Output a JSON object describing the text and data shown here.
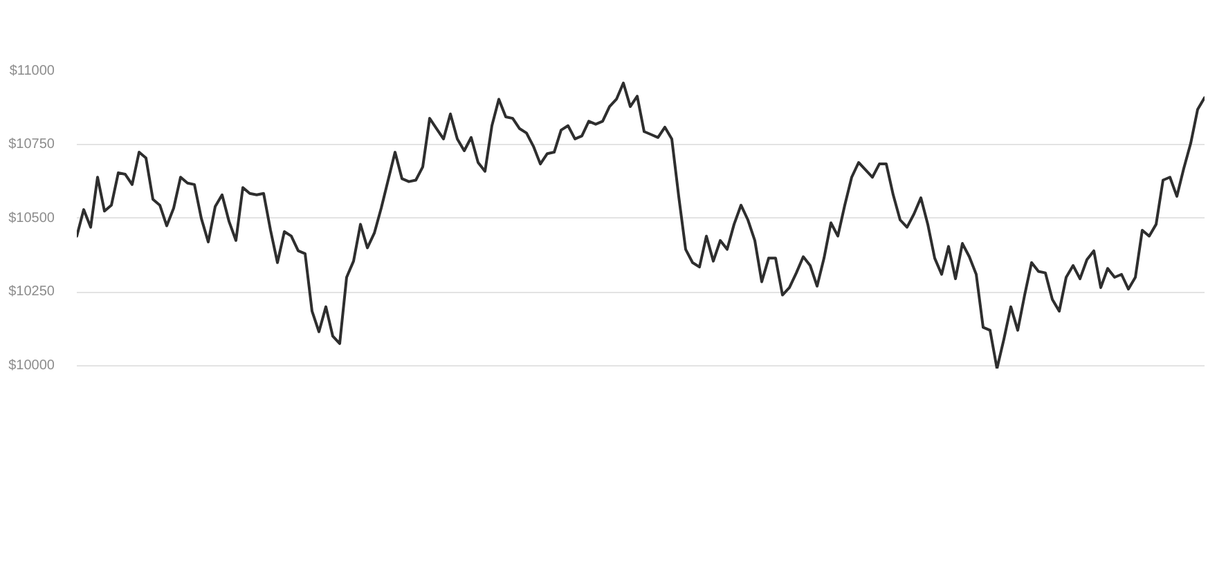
{
  "chart_data": {
    "type": "line",
    "color": "#2e2e2e",
    "categories": [
      null,
      null,
      null,
      null,
      null,
      null,
      null,
      null,
      null,
      null,
      null,
      null,
      null,
      null,
      null,
      null,
      null,
      null,
      null,
      null,
      null,
      null,
      null,
      null,
      null,
      null,
      null,
      null,
      null,
      null,
      null,
      null,
      null,
      null,
      null,
      null,
      null,
      null,
      null,
      null,
      null,
      null,
      null,
      null,
      null,
      null,
      null,
      null,
      null,
      null,
      null,
      null,
      null,
      null,
      null,
      null,
      null,
      null,
      null,
      null,
      null,
      null,
      null,
      null,
      null,
      null,
      null,
      null,
      null,
      null,
      null,
      null,
      null,
      null,
      null,
      null,
      null,
      null,
      null,
      null,
      null,
      null,
      null,
      null,
      null,
      null,
      null,
      null,
      null,
      null,
      null,
      null,
      null,
      null,
      null,
      null,
      null,
      null,
      null,
      null,
      null,
      null,
      null,
      null,
      null,
      null,
      null,
      null,
      null,
      null,
      null,
      null,
      null,
      null,
      null,
      null,
      null,
      null,
      null,
      null,
      null,
      null,
      null,
      null,
      null,
      null,
      null,
      null,
      null,
      null,
      null,
      null,
      null,
      null,
      null,
      null,
      null,
      null,
      null,
      null,
      null,
      null,
      null,
      null,
      null,
      null,
      null,
      null,
      null,
      null,
      null,
      null,
      null,
      null,
      null,
      null,
      null,
      null,
      null,
      null,
      null,
      null,
      null,
      null
    ],
    "values": [
      10440,
      10530,
      10470,
      10640,
      10525,
      10545,
      10655,
      10650,
      10615,
      10725,
      10705,
      10565,
      10545,
      10475,
      10535,
      10640,
      10620,
      10615,
      10500,
      10420,
      10540,
      10580,
      10490,
      10425,
      10605,
      10585,
      10580,
      10585,
      10460,
      10350,
      10455,
      10440,
      10390,
      10380,
      10185,
      10115,
      10200,
      10100,
      10075,
      10300,
      10355,
      10480,
      10400,
      10450,
      10535,
      10630,
      10725,
      10635,
      10625,
      10630,
      10675,
      10840,
      10805,
      10770,
      10855,
      10770,
      10730,
      10775,
      10690,
      10660,
      10815,
      10905,
      10845,
      10840,
      10805,
      10790,
      10745,
      10685,
      10720,
      10725,
      10800,
      10815,
      10770,
      10780,
      10830,
      10820,
      10830,
      10880,
      10905,
      10960,
      10880,
      10915,
      10795,
      10785,
      10775,
      10810,
      10770,
      10575,
      10395,
      10350,
      10335,
      10440,
      10355,
      10425,
      10395,
      10480,
      10545,
      10495,
      10425,
      10285,
      10365,
      10365,
      10240,
      10265,
      10315,
      10370,
      10340,
      10270,
      10365,
      10485,
      10440,
      10545,
      10640,
      10690,
      10665,
      10640,
      10685,
      10685,
      10580,
      10495,
      10470,
      10515,
      10570,
      10480,
      10365,
      10310,
      10405,
      10295,
      10415,
      10370,
      10310,
      10130,
      10120,
      9990,
      10090,
      10200,
      10120,
      10240,
      10350,
      10320,
      10315,
      10225,
      10185,
      10300,
      10340,
      10295,
      10360,
      10390,
      10265,
      10330,
      10300,
      10310,
      10260,
      10300,
      10460,
      10440,
      10480,
      10630,
      10640,
      10575,
      10670,
      10755,
      10870,
      10910
    ],
    "ylim": [
      9990,
      11000
    ],
    "yticks": [
      {
        "value": 10000,
        "label": "$10000"
      },
      {
        "value": 10250,
        "label": "$10250"
      },
      {
        "value": 10500,
        "label": "$10500"
      },
      {
        "value": 10750,
        "label": "$10750"
      },
      {
        "value": 11000,
        "label": "$11000"
      }
    ],
    "grid": "y",
    "tick_labels": "y",
    "line_style": "solid"
  }
}
